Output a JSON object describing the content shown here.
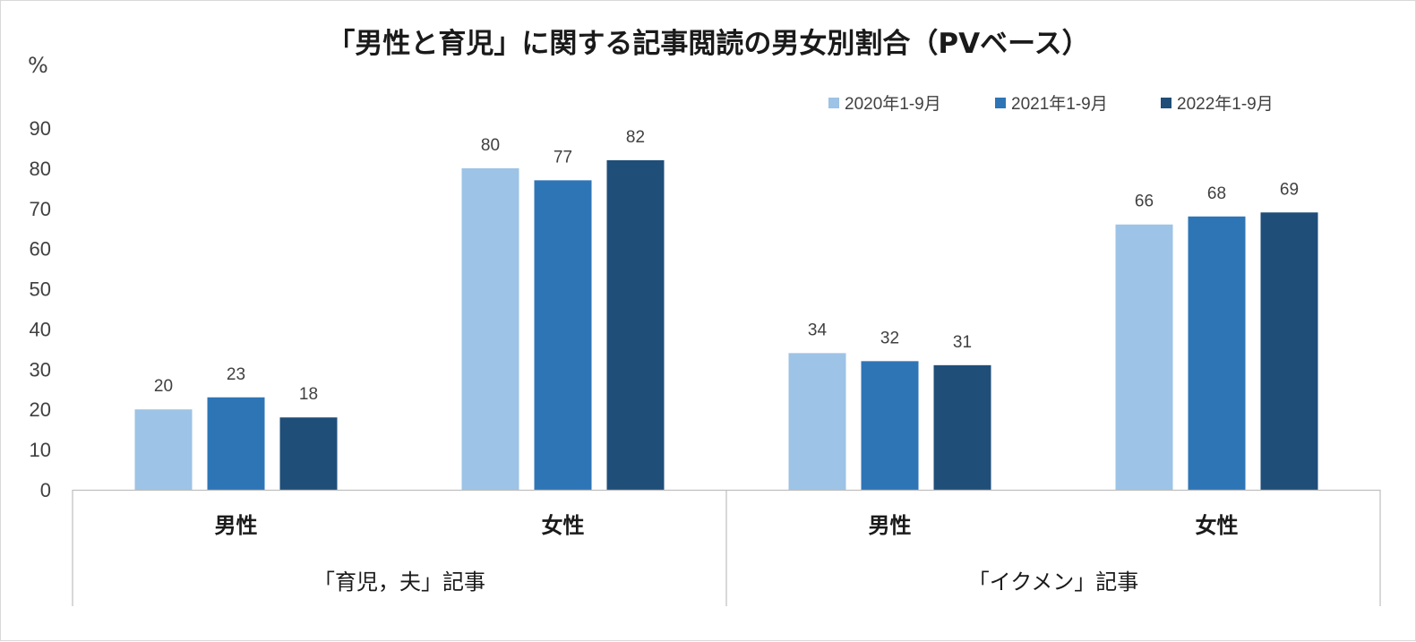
{
  "chart_data": {
    "type": "bar",
    "title": "「男性と育児」に関する記事閲読の男女別割合（PVベース）",
    "ylabel": "%",
    "ylim": [
      0,
      90
    ],
    "yticks": [
      0,
      10,
      20,
      30,
      40,
      50,
      60,
      70,
      80,
      90
    ],
    "grid": false,
    "legend_position": "top-right",
    "groups": [
      {
        "label": "「育児，夫」記事",
        "categories": [
          "男性",
          "女性"
        ]
      },
      {
        "label": "「イクメン」記事",
        "categories": [
          "男性",
          "女性"
        ]
      }
    ],
    "categories": [
      "男性",
      "女性",
      "男性",
      "女性"
    ],
    "series": [
      {
        "name": "2020年1-9月",
        "color": "#9dc3e6",
        "values": [
          20,
          80,
          34,
          66
        ]
      },
      {
        "name": "2021年1-9月",
        "color": "#2e75b6",
        "values": [
          23,
          77,
          32,
          68
        ]
      },
      {
        "name": "2022年1-9月",
        "color": "#1f4e79",
        "values": [
          18,
          82,
          31,
          69
        ]
      }
    ]
  }
}
